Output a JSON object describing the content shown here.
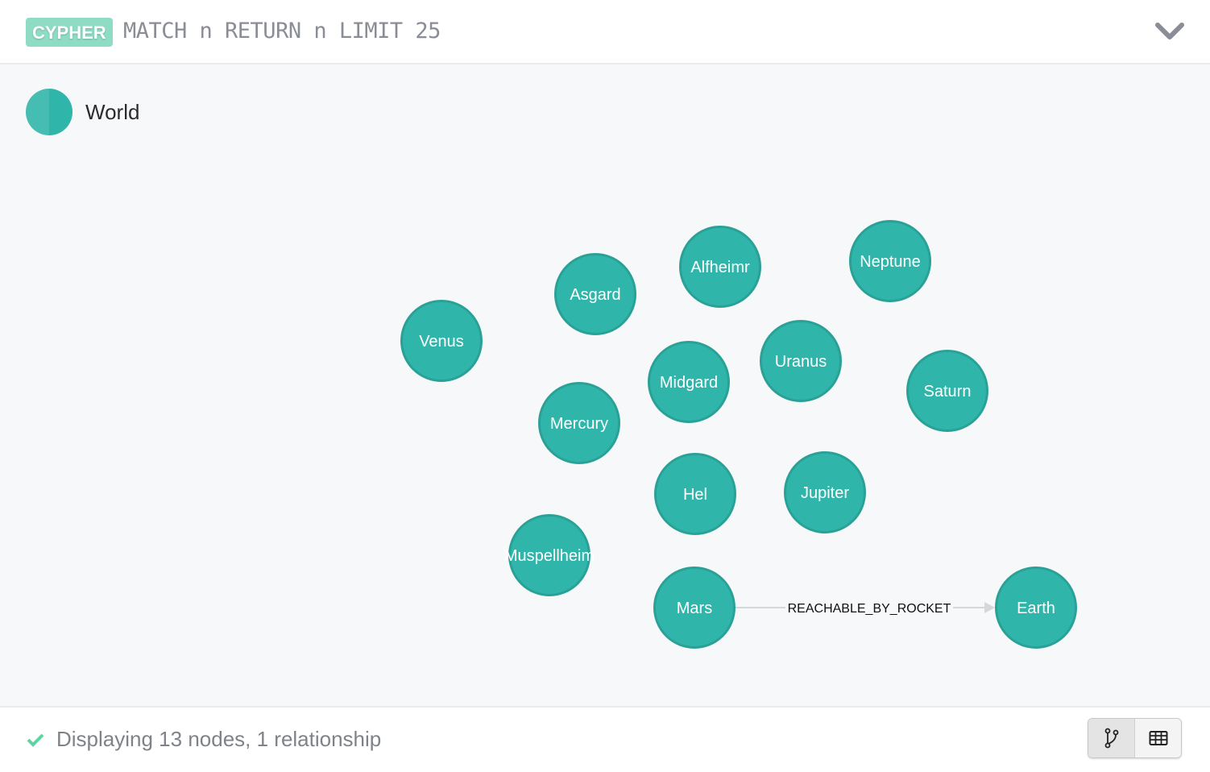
{
  "header": {
    "badge": "CYPHER",
    "query": "MATCH n RETURN n LIMIT 25",
    "collapse_icon": "chevron-down-icon"
  },
  "legend": {
    "label": "World",
    "color": "#30b5aa"
  },
  "graph": {
    "node_color": "#30b5aa",
    "nodes": [
      "Alfheimr",
      "Neptune",
      "Asgard",
      "Venus",
      "Uranus",
      "Midgard",
      "Saturn",
      "Mercury",
      "Hel",
      "Jupiter",
      "Muspellheim",
      "Mars",
      "Earth"
    ],
    "relationships": [
      {
        "from": "Mars",
        "to": "Earth",
        "type": "REACHABLE_BY_ROCKET"
      }
    ]
  },
  "footer": {
    "status": "Displaying 13 nodes, 1 relationship",
    "status_icon": "check-icon",
    "view_graph_icon": "graph-view-icon",
    "view_table_icon": "table-view-icon"
  }
}
